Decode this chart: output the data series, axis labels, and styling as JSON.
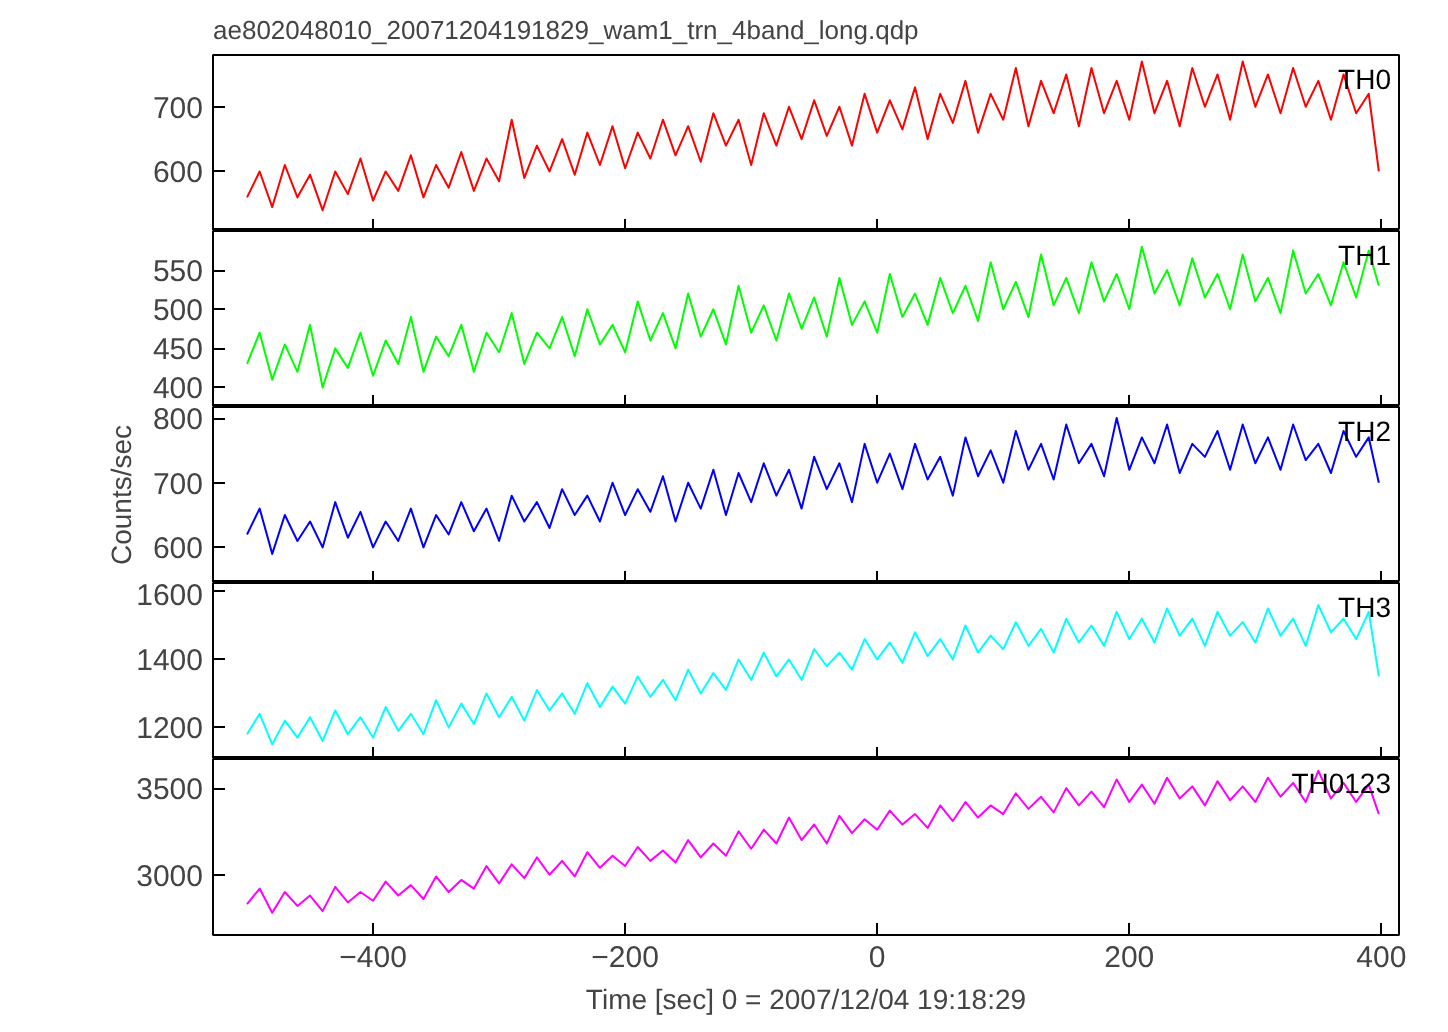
{
  "chart_data": [
    {
      "type": "line",
      "title": "ae802048010_20071204191829_wam1_trn_4band_long.qdp",
      "tick_labels": "y",
      "xlim": [
        -527,
        414
      ],
      "xticks": [
        -400,
        -200,
        0,
        200,
        400
      ],
      "ylim": [
        508,
        780
      ],
      "yticks": [
        600,
        700
      ],
      "x": [
        -500,
        -490,
        -480,
        -470,
        -460,
        -450,
        -440,
        -430,
        -420,
        -410,
        -400,
        -390,
        -380,
        -370,
        -360,
        -350,
        -340,
        -330,
        -320,
        -310,
        -300,
        -290,
        -280,
        -270,
        -260,
        -250,
        -240,
        -230,
        -220,
        -210,
        -200,
        -190,
        -180,
        -170,
        -160,
        -150,
        -140,
        -130,
        -120,
        -110,
        -100,
        -90,
        -80,
        -70,
        -60,
        -50,
        -40,
        -30,
        -20,
        -10,
        0,
        10,
        20,
        30,
        40,
        50,
        60,
        70,
        80,
        90,
        100,
        110,
        120,
        130,
        140,
        150,
        160,
        170,
        180,
        190,
        200,
        210,
        220,
        230,
        240,
        250,
        260,
        270,
        280,
        290,
        300,
        310,
        320,
        330,
        340,
        350,
        360,
        370,
        380,
        390,
        398
      ],
      "series": [
        {
          "name": "TH0",
          "color": "#ff0000",
          "values": [
            560,
            600,
            545,
            610,
            560,
            595,
            540,
            600,
            565,
            620,
            555,
            600,
            570,
            625,
            560,
            610,
            575,
            630,
            570,
            620,
            585,
            680,
            590,
            640,
            600,
            650,
            595,
            660,
            610,
            670,
            605,
            660,
            620,
            680,
            625,
            670,
            615,
            690,
            640,
            680,
            610,
            690,
            640,
            700,
            650,
            710,
            655,
            700,
            640,
            720,
            660,
            710,
            665,
            730,
            650,
            720,
            675,
            740,
            660,
            720,
            680,
            760,
            670,
            740,
            690,
            750,
            670,
            760,
            690,
            740,
            680,
            770,
            690,
            740,
            670,
            760,
            700,
            750,
            680,
            770,
            700,
            750,
            690,
            760,
            700,
            740,
            680,
            750,
            690,
            720,
            600
          ]
        }
      ]
    },
    {
      "type": "line",
      "tick_labels": "y",
      "xlim": [
        -527,
        414
      ],
      "xticks": [
        -400,
        -200,
        0,
        200,
        400
      ],
      "ylim": [
        375,
        600
      ],
      "yticks": [
        400,
        450,
        500,
        550
      ],
      "x": [
        -500,
        -490,
        -480,
        -470,
        -460,
        -450,
        -440,
        -430,
        -420,
        -410,
        -400,
        -390,
        -380,
        -370,
        -360,
        -350,
        -340,
        -330,
        -320,
        -310,
        -300,
        -290,
        -280,
        -270,
        -260,
        -250,
        -240,
        -230,
        -220,
        -210,
        -200,
        -190,
        -180,
        -170,
        -160,
        -150,
        -140,
        -130,
        -120,
        -110,
        -100,
        -90,
        -80,
        -70,
        -60,
        -50,
        -40,
        -30,
        -20,
        -10,
        0,
        10,
        20,
        30,
        40,
        50,
        60,
        70,
        80,
        90,
        100,
        110,
        120,
        130,
        140,
        150,
        160,
        170,
        180,
        190,
        200,
        210,
        220,
        230,
        240,
        250,
        260,
        270,
        280,
        290,
        300,
        310,
        320,
        330,
        340,
        350,
        360,
        370,
        380,
        390,
        398
      ],
      "series": [
        {
          "name": "TH1",
          "color": "#00ff00",
          "values": [
            430,
            470,
            410,
            455,
            420,
            480,
            400,
            450,
            425,
            470,
            415,
            460,
            430,
            490,
            420,
            465,
            440,
            480,
            420,
            470,
            445,
            495,
            430,
            470,
            450,
            490,
            440,
            500,
            455,
            480,
            445,
            510,
            460,
            495,
            450,
            520,
            465,
            500,
            455,
            530,
            470,
            505,
            460,
            520,
            475,
            515,
            465,
            540,
            480,
            510,
            470,
            545,
            490,
            520,
            480,
            540,
            495,
            530,
            485,
            560,
            500,
            535,
            490,
            570,
            505,
            540,
            495,
            560,
            510,
            545,
            500,
            580,
            520,
            550,
            505,
            565,
            515,
            545,
            500,
            570,
            510,
            540,
            495,
            575,
            520,
            545,
            505,
            560,
            515,
            575,
            530
          ]
        }
      ]
    },
    {
      "type": "line",
      "ylabel": "Counts/sec",
      "tick_labels": "y",
      "xlim": [
        -527,
        414
      ],
      "xticks": [
        -400,
        -200,
        0,
        200,
        400
      ],
      "ylim": [
        545,
        817
      ],
      "yticks": [
        600,
        700,
        800
      ],
      "x": [
        -500,
        -490,
        -480,
        -470,
        -460,
        -450,
        -440,
        -430,
        -420,
        -410,
        -400,
        -390,
        -380,
        -370,
        -360,
        -350,
        -340,
        -330,
        -320,
        -310,
        -300,
        -290,
        -280,
        -270,
        -260,
        -250,
        -240,
        -230,
        -220,
        -210,
        -200,
        -190,
        -180,
        -170,
        -160,
        -150,
        -140,
        -130,
        -120,
        -110,
        -100,
        -90,
        -80,
        -70,
        -60,
        -50,
        -40,
        -30,
        -20,
        -10,
        0,
        10,
        20,
        30,
        40,
        50,
        60,
        70,
        80,
        90,
        100,
        110,
        120,
        130,
        140,
        150,
        160,
        170,
        180,
        190,
        200,
        210,
        220,
        230,
        240,
        250,
        260,
        270,
        280,
        290,
        300,
        310,
        320,
        330,
        340,
        350,
        360,
        370,
        380,
        390,
        398
      ],
      "series": [
        {
          "name": "TH2",
          "color": "#0000ff",
          "values": [
            620,
            660,
            590,
            650,
            610,
            640,
            600,
            670,
            615,
            655,
            600,
            640,
            610,
            660,
            600,
            650,
            620,
            670,
            625,
            660,
            610,
            680,
            640,
            670,
            630,
            690,
            650,
            680,
            640,
            700,
            650,
            690,
            655,
            710,
            640,
            700,
            660,
            720,
            650,
            715,
            670,
            730,
            680,
            720,
            660,
            740,
            690,
            730,
            670,
            760,
            700,
            745,
            690,
            760,
            705,
            740,
            680,
            770,
            710,
            750,
            700,
            780,
            720,
            760,
            705,
            790,
            730,
            760,
            710,
            800,
            720,
            770,
            730,
            790,
            715,
            760,
            740,
            780,
            720,
            790,
            730,
            770,
            720,
            790,
            735,
            760,
            715,
            780,
            740,
            770,
            700
          ]
        }
      ]
    },
    {
      "type": "line",
      "tick_labels": "y",
      "xlim": [
        -527,
        414
      ],
      "xticks": [
        -400,
        -200,
        0,
        200,
        400
      ],
      "ylim": [
        1107,
        1625
      ],
      "yticks": [
        1200,
        1400,
        1600
      ],
      "x": [
        -500,
        -490,
        -480,
        -470,
        -460,
        -450,
        -440,
        -430,
        -420,
        -410,
        -400,
        -390,
        -380,
        -370,
        -360,
        -350,
        -340,
        -330,
        -320,
        -310,
        -300,
        -290,
        -280,
        -270,
        -260,
        -250,
        -240,
        -230,
        -220,
        -210,
        -200,
        -190,
        -180,
        -170,
        -160,
        -150,
        -140,
        -130,
        -120,
        -110,
        -100,
        -90,
        -80,
        -70,
        -60,
        -50,
        -40,
        -30,
        -20,
        -10,
        0,
        10,
        20,
        30,
        40,
        50,
        60,
        70,
        80,
        90,
        100,
        110,
        120,
        130,
        140,
        150,
        160,
        170,
        180,
        190,
        200,
        210,
        220,
        230,
        240,
        250,
        260,
        270,
        280,
        290,
        300,
        310,
        320,
        330,
        340,
        350,
        360,
        370,
        380,
        390,
        398
      ],
      "series": [
        {
          "name": "TH3",
          "color": "#00ffff",
          "values": [
            1180,
            1240,
            1150,
            1220,
            1170,
            1230,
            1160,
            1250,
            1180,
            1230,
            1170,
            1260,
            1190,
            1240,
            1180,
            1280,
            1200,
            1270,
            1210,
            1300,
            1230,
            1290,
            1220,
            1310,
            1250,
            1300,
            1240,
            1330,
            1260,
            1320,
            1270,
            1350,
            1290,
            1340,
            1280,
            1370,
            1300,
            1360,
            1310,
            1400,
            1340,
            1420,
            1350,
            1400,
            1340,
            1430,
            1380,
            1420,
            1370,
            1460,
            1400,
            1450,
            1390,
            1480,
            1410,
            1460,
            1400,
            1500,
            1420,
            1470,
            1430,
            1510,
            1440,
            1490,
            1420,
            1520,
            1450,
            1500,
            1440,
            1540,
            1460,
            1520,
            1450,
            1550,
            1470,
            1520,
            1440,
            1540,
            1470,
            1510,
            1450,
            1550,
            1470,
            1520,
            1440,
            1560,
            1480,
            1520,
            1460,
            1540,
            1350
          ]
        }
      ]
    },
    {
      "type": "line",
      "xlabel": "Time [sec] 0 = 2007/12/04 19:18:29",
      "xlim": [
        -527,
        414
      ],
      "xticks": [
        -400,
        -200,
        0,
        200,
        400
      ],
      "ylim": [
        2652,
        3668
      ],
      "yticks": [
        3000,
        3500
      ],
      "x": [
        -500,
        -490,
        -480,
        -470,
        -460,
        -450,
        -440,
        -430,
        -420,
        -410,
        -400,
        -390,
        -380,
        -370,
        -360,
        -350,
        -340,
        -330,
        -320,
        -310,
        -300,
        -290,
        -280,
        -270,
        -260,
        -250,
        -240,
        -230,
        -220,
        -210,
        -200,
        -190,
        -180,
        -170,
        -160,
        -150,
        -140,
        -130,
        -120,
        -110,
        -100,
        -90,
        -80,
        -70,
        -60,
        -50,
        -40,
        -30,
        -20,
        -10,
        0,
        10,
        20,
        30,
        40,
        50,
        60,
        70,
        80,
        90,
        100,
        110,
        120,
        130,
        140,
        150,
        160,
        170,
        180,
        190,
        200,
        210,
        220,
        230,
        240,
        250,
        260,
        270,
        280,
        290,
        300,
        310,
        320,
        330,
        340,
        350,
        360,
        370,
        380,
        390,
        398
      ],
      "series": [
        {
          "name": "TH0123",
          "color": "#ff00ff",
          "values": [
            2830,
            2920,
            2780,
            2900,
            2820,
            2880,
            2790,
            2930,
            2840,
            2900,
            2850,
            2960,
            2880,
            2940,
            2860,
            2990,
            2900,
            2970,
            2920,
            3050,
            2950,
            3060,
            2980,
            3100,
            3000,
            3080,
            2990,
            3130,
            3040,
            3110,
            3050,
            3160,
            3080,
            3140,
            3070,
            3200,
            3100,
            3180,
            3110,
            3250,
            3150,
            3260,
            3180,
            3330,
            3200,
            3290,
            3180,
            3340,
            3240,
            3320,
            3260,
            3370,
            3290,
            3350,
            3270,
            3400,
            3310,
            3420,
            3330,
            3400,
            3350,
            3470,
            3380,
            3450,
            3360,
            3500,
            3400,
            3480,
            3390,
            3550,
            3420,
            3520,
            3410,
            3560,
            3440,
            3510,
            3400,
            3540,
            3430,
            3510,
            3420,
            3560,
            3450,
            3530,
            3420,
            3600,
            3440,
            3530,
            3420,
            3520,
            3350
          ]
        }
      ]
    }
  ]
}
